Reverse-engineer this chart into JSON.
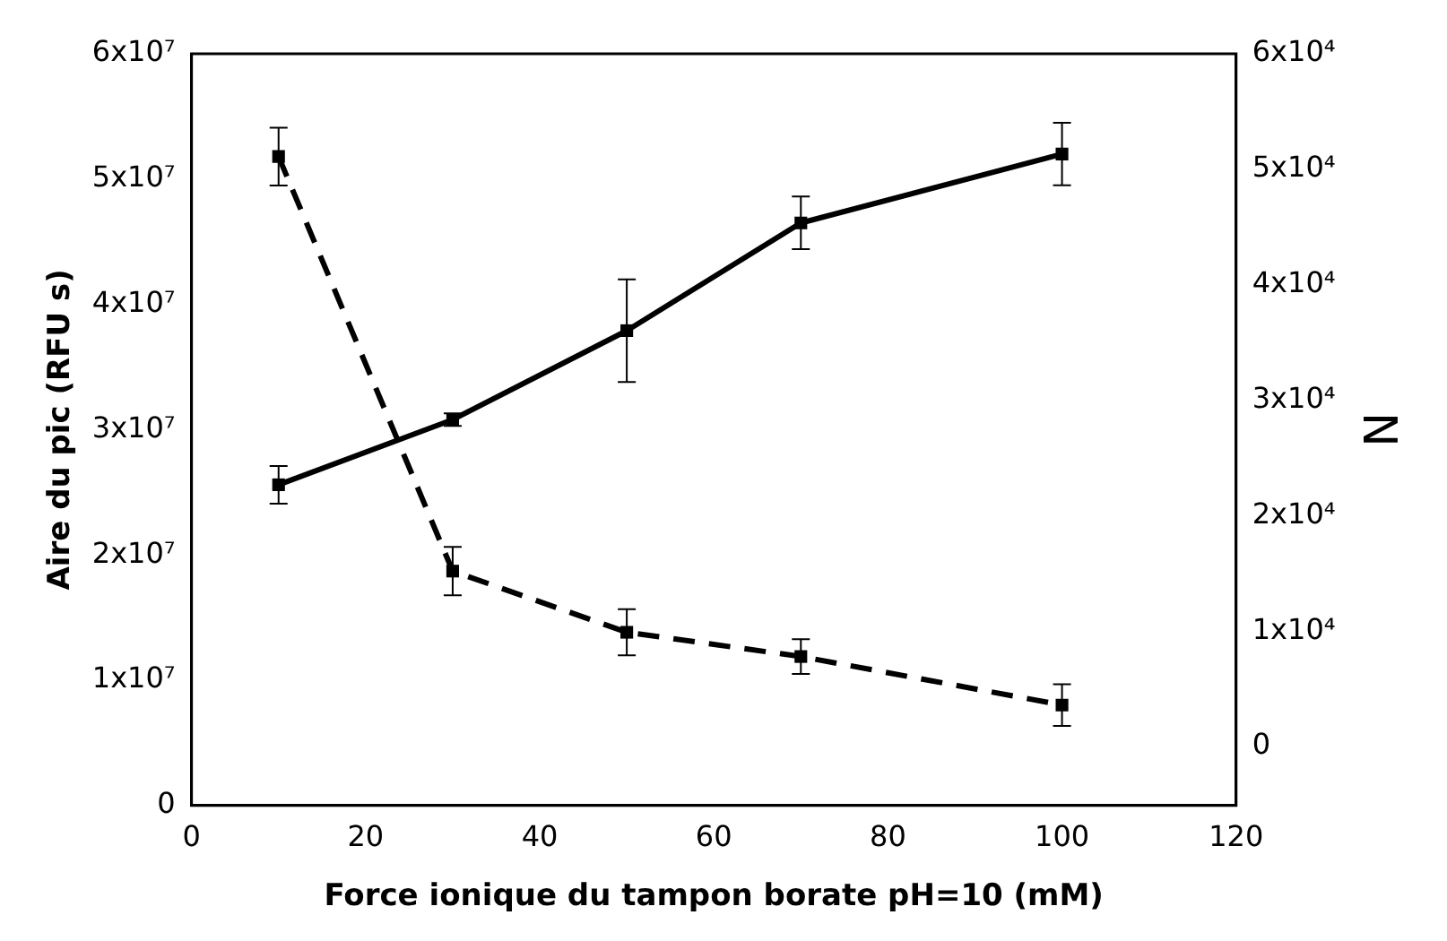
{
  "chart_data": {
    "type": "line",
    "xlabel": "Force ionique du tampon borate pH=10 (mM)",
    "ylabel": "Aire du pic (RFU s)",
    "y2label": "N",
    "x": [
      10,
      30,
      50,
      70,
      100
    ],
    "series": [
      {
        "color": "#000000",
        "line_style": "solid",
        "values": [
          25600000,
          30800000,
          37900000,
          46500000,
          52000000
        ],
        "errors": [
          1500000,
          500000,
          4100000,
          2100000,
          2500000
        ]
      },
      {
        "color": "#000000",
        "line_style": "dashed",
        "axis": "y2",
        "values": [
          51100,
          15200,
          9900,
          7800,
          3600
        ],
        "errors": [
          2500,
          2100,
          2000,
          1500,
          1800
        ]
      }
    ],
    "xlim": [
      0,
      120
    ],
    "xticks": [
      0,
      20,
      40,
      60,
      80,
      100,
      120
    ],
    "ylim": [
      0,
      60000000
    ],
    "yticks": [
      0,
      {
        "value": 10000000,
        "label": "1x10⁷"
      },
      {
        "value": 20000000,
        "label": "2x10⁷"
      },
      {
        "value": 30000000,
        "label": "3x10⁷"
      },
      {
        "value": 40000000,
        "label": "4x10⁷"
      },
      {
        "value": 50000000,
        "label": "5x10⁷"
      },
      {
        "value": 60000000,
        "label": "6x10⁷"
      }
    ],
    "y2lim": [
      -5100,
      60000
    ],
    "y2ticks": [
      0,
      {
        "value": 10000,
        "label": "1x10⁴"
      },
      {
        "value": 20000,
        "label": "2x10⁴"
      },
      {
        "value": 30000,
        "label": "3x10⁴"
      },
      {
        "value": 40000,
        "label": "4x10⁴"
      },
      {
        "value": 50000,
        "label": "5x10⁴"
      },
      {
        "value": 60000,
        "label": "6x10⁴"
      }
    ],
    "grid": false,
    "legend": false,
    "marker": "square"
  }
}
